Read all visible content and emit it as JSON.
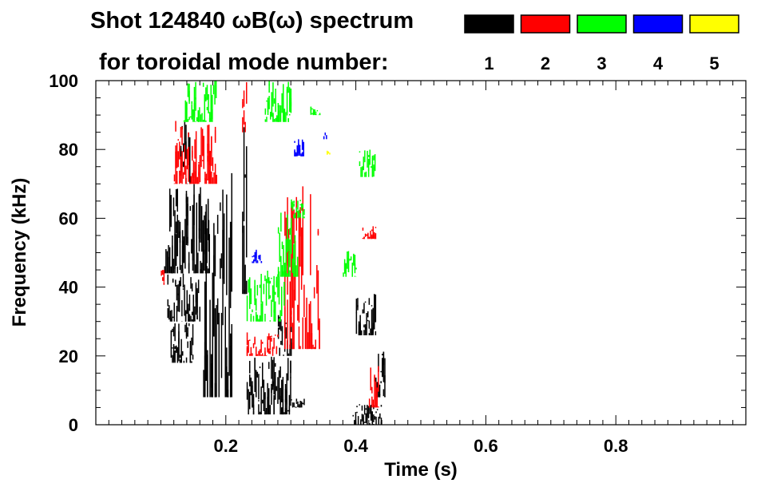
{
  "chart_data": {
    "type": "heatmap",
    "title_line1": "Shot 124840 ωB(ω) spectrum",
    "title_line2": "for toroidal mode number:",
    "xlabel": "Time (s)",
    "ylabel": "Frequency (kHz)",
    "xlim": [
      0.0,
      1.0
    ],
    "ylim": [
      0,
      100
    ],
    "x_ticks": [
      {
        "value": 0.2,
        "label": "0.2"
      },
      {
        "value": 0.4,
        "label": "0.4"
      },
      {
        "value": 0.6,
        "label": "0.6"
      },
      {
        "value": 0.8,
        "label": "0.8"
      }
    ],
    "y_ticks": [
      {
        "value": 0,
        "label": "0"
      },
      {
        "value": 20,
        "label": "20"
      },
      {
        "value": 40,
        "label": "40"
      },
      {
        "value": 60,
        "label": "60"
      },
      {
        "value": 80,
        "label": "80"
      },
      {
        "value": 100,
        "label": "100"
      }
    ],
    "legend_position": "top-right",
    "legend": [
      {
        "label": "1",
        "color": "#000000"
      },
      {
        "label": "2",
        "color": "#ff0000"
      },
      {
        "label": "3",
        "color": "#00ff00"
      },
      {
        "label": "4",
        "color": "#0000ff"
      },
      {
        "label": "5",
        "color": "#ffff00"
      }
    ],
    "regions": [
      {
        "mode": 1,
        "t": [
          0.105,
          0.175
        ],
        "f": [
          44,
          70
        ]
      },
      {
        "mode": 1,
        "t": [
          0.11,
          0.16
        ],
        "f": [
          30,
          44
        ]
      },
      {
        "mode": 1,
        "t": [
          0.115,
          0.15
        ],
        "f": [
          18,
          30
        ]
      },
      {
        "mode": 1,
        "t": [
          0.13,
          0.145
        ],
        "f": [
          70,
          88
        ]
      },
      {
        "mode": 1,
        "t": [
          0.165,
          0.21
        ],
        "f": [
          8,
          75
        ]
      },
      {
        "mode": 1,
        "t": [
          0.225,
          0.232
        ],
        "f": [
          38,
          100
        ]
      },
      {
        "mode": 1,
        "t": [
          0.232,
          0.3
        ],
        "f": [
          3,
          20
        ]
      },
      {
        "mode": 1,
        "t": [
          0.28,
          0.3
        ],
        "f": [
          20,
          32
        ]
      },
      {
        "mode": 1,
        "t": [
          0.3,
          0.32
        ],
        "f": [
          5,
          8
        ]
      },
      {
        "mode": 1,
        "t": [
          0.395,
          0.44
        ],
        "f": [
          0,
          6
        ]
      },
      {
        "mode": 1,
        "t": [
          0.4,
          0.43
        ],
        "f": [
          26,
          38
        ]
      },
      {
        "mode": 1,
        "t": [
          0.43,
          0.445
        ],
        "f": [
          8,
          22
        ]
      },
      {
        "mode": 2,
        "t": [
          0.12,
          0.185
        ],
        "f": [
          70,
          89
        ]
      },
      {
        "mode": 2,
        "t": [
          0.1,
          0.105
        ],
        "f": [
          40,
          45
        ]
      },
      {
        "mode": 2,
        "t": [
          0.225,
          0.232
        ],
        "f": [
          85,
          100
        ]
      },
      {
        "mode": 2,
        "t": [
          0.232,
          0.28
        ],
        "f": [
          20,
          27
        ]
      },
      {
        "mode": 2,
        "t": [
          0.29,
          0.345
        ],
        "f": [
          22,
          70
        ]
      },
      {
        "mode": 2,
        "t": [
          0.42,
          0.435
        ],
        "f": [
          5,
          20
        ]
      },
      {
        "mode": 2,
        "t": [
          0.41,
          0.43
        ],
        "f": [
          54,
          58
        ]
      },
      {
        "mode": 3,
        "t": [
          0.135,
          0.185
        ],
        "f": [
          88,
          100
        ]
      },
      {
        "mode": 3,
        "t": [
          0.26,
          0.3
        ],
        "f": [
          88,
          100
        ]
      },
      {
        "mode": 3,
        "t": [
          0.232,
          0.29
        ],
        "f": [
          30,
          45
        ]
      },
      {
        "mode": 3,
        "t": [
          0.28,
          0.31
        ],
        "f": [
          43,
          62
        ]
      },
      {
        "mode": 3,
        "t": [
          0.3,
          0.32
        ],
        "f": [
          60,
          66
        ]
      },
      {
        "mode": 3,
        "t": [
          0.38,
          0.4
        ],
        "f": [
          43,
          52
        ]
      },
      {
        "mode": 3,
        "t": [
          0.405,
          0.43
        ],
        "f": [
          72,
          80
        ]
      },
      {
        "mode": 3,
        "t": [
          0.33,
          0.345
        ],
        "f": [
          90,
          93
        ]
      },
      {
        "mode": 4,
        "t": [
          0.24,
          0.255
        ],
        "f": [
          47,
          51
        ]
      },
      {
        "mode": 4,
        "t": [
          0.305,
          0.32
        ],
        "f": [
          78,
          83
        ]
      },
      {
        "mode": 4,
        "t": [
          0.35,
          0.355
        ],
        "f": [
          83,
          85
        ]
      },
      {
        "mode": 5,
        "t": [
          0.355,
          0.36
        ],
        "f": [
          78,
          80
        ]
      }
    ]
  }
}
